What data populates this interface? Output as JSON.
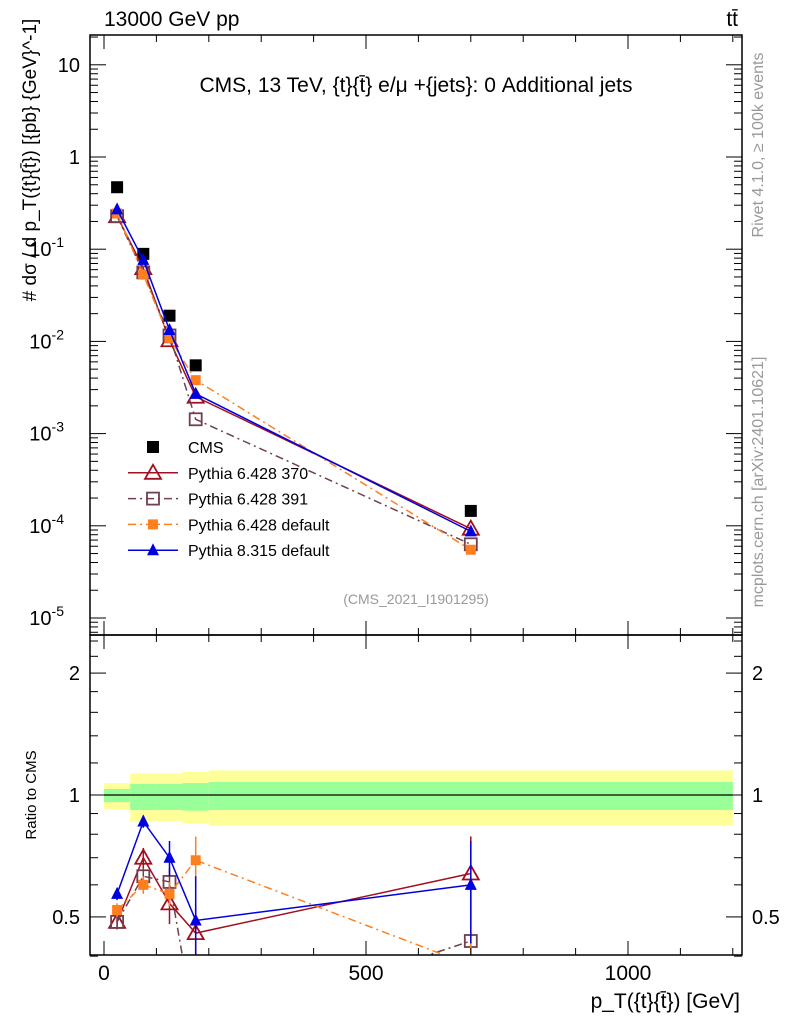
{
  "header": {
    "left": "13000 GeV pp",
    "right": "tt̄"
  },
  "side_texts": {
    "rivet": "Rivet 4.1.0, ≥ 100k events",
    "mcplots": "mcplots.cern.ch [arXiv:2401.10621]"
  },
  "chart_data": [
    {
      "type": "line",
      "title": "CMS, 13 TeV, {t}{t̄} e/μ +{jets}: 0 Additional jets",
      "annotation": "(CMS_2021_I1901295)",
      "ylabel": "# dσ / d p_T({t}{t̄}) [{pb} {GeV}^-1]",
      "yscale": "log",
      "ylim": [
        6e-06,
        20
      ],
      "xlim": [
        -27,
        1218
      ],
      "yticks": [
        {
          "v": 10,
          "base": "10",
          "exp": ""
        },
        {
          "v": 1,
          "base": "1",
          "exp": ""
        },
        {
          "v": 0.1,
          "base": "10",
          "exp": "-1"
        },
        {
          "v": 0.01,
          "base": "10",
          "exp": "-2"
        },
        {
          "v": 0.001,
          "base": "10",
          "exp": "-3"
        },
        {
          "v": 0.0001,
          "base": "10",
          "exp": "-4"
        },
        {
          "v": 1e-05,
          "base": "10",
          "exp": "-5"
        }
      ],
      "x": [
        25,
        75,
        125,
        175,
        700
      ],
      "bin_edges": [
        0,
        50,
        100,
        150,
        200,
        1200
      ],
      "legend_position": "lower-left",
      "series": [
        {
          "name": "CMS",
          "color": "#000000",
          "marker": "square-filled",
          "line": "none",
          "values": [
            0.47,
            0.089,
            0.019,
            0.0055,
            0.000145
          ]
        },
        {
          "name": "Pythia 6.428 370",
          "color": "#a01020",
          "marker": "triangle-open",
          "line": "solid",
          "values": [
            0.228,
            0.0623,
            0.0103,
            0.00251,
            9.3e-05
          ]
        },
        {
          "name": "Pythia 6.428 391",
          "color": "#704050",
          "marker": "square-open",
          "line": "dashdot",
          "values": [
            0.228,
            0.056,
            0.0116,
            0.00143,
            6.3e-05
          ]
        },
        {
          "name": "Pythia 6.428 default",
          "color": "#ff7f1f",
          "marker": "square-filled-small",
          "line": "dashdot",
          "values": [
            0.244,
            0.053,
            0.0108,
            0.0038,
            5.5e-05
          ]
        },
        {
          "name": "Pythia 8.315 default",
          "color": "#0000e0",
          "marker": "triangle-filled",
          "line": "solid",
          "values": [
            0.27,
            0.0765,
            0.0133,
            0.0027,
            8.7e-05
          ]
        }
      ]
    },
    {
      "type": "line",
      "ylabel": "Ratio to CMS",
      "xlabel": "p_T({t}{t̄}) [GeV]",
      "yscale": "log",
      "ylim": [
        0.4,
        2.48
      ],
      "yticks": [
        {
          "v": 2,
          "label": "2"
        },
        {
          "v": 1,
          "label": "1"
        },
        {
          "v": 0.5,
          "label": "0.5"
        }
      ],
      "xticks": [
        {
          "v": 0,
          "label": "0"
        },
        {
          "v": 500,
          "label": "500"
        },
        {
          "v": 1000,
          "label": "1000"
        }
      ],
      "x": [
        25,
        75,
        125,
        175,
        700
      ],
      "bands": {
        "bin_edges": [
          0,
          50,
          100,
          150,
          200,
          1200
        ],
        "yellow": {
          "color": "#ffff99",
          "lo": [
            0.92,
            0.86,
            0.86,
            0.85,
            0.84
          ],
          "hi": [
            1.07,
            1.13,
            1.13,
            1.14,
            1.15
          ]
        },
        "green": {
          "color": "#99ff99",
          "lo": [
            0.96,
            0.918,
            0.918,
            0.915,
            0.918
          ],
          "hi": [
            1.035,
            1.065,
            1.065,
            1.07,
            1.077
          ]
        }
      },
      "series": [
        {
          "name": "Pythia 6.428 370",
          "color": "#a01020",
          "marker": "triangle-open",
          "line": "solid",
          "values": [
            0.486,
            0.7,
            0.54,
            0.456,
            0.64
          ],
          "err": [
            0.02,
            0.04,
            0.06,
            0.08,
            0.15
          ]
        },
        {
          "name": "Pythia 6.428 391",
          "color": "#704050",
          "marker": "square-open",
          "line": "dashdot",
          "values": [
            0.486,
            0.63,
            0.61,
            0.26,
            0.436
          ],
          "err": [
            0.02,
            0.03,
            0.05,
            0.1,
            0.15
          ]
        },
        {
          "name": "Pythia 6.428 default",
          "color": "#ff7f1f",
          "marker": "square-filled-small",
          "line": "dashdot",
          "values": [
            0.52,
            0.6,
            0.57,
            0.69,
            0.38
          ],
          "err": [
            0.02,
            0.03,
            0.04,
            0.1,
            0.1
          ]
        },
        {
          "name": "Pythia 8.315 default",
          "color": "#0000e0",
          "marker": "triangle-filled",
          "line": "solid",
          "values": [
            0.57,
            0.86,
            0.7,
            0.49,
            0.6
          ],
          "err": [
            0.02,
            0.03,
            0.07,
            0.14,
            0.17
          ]
        }
      ]
    }
  ]
}
